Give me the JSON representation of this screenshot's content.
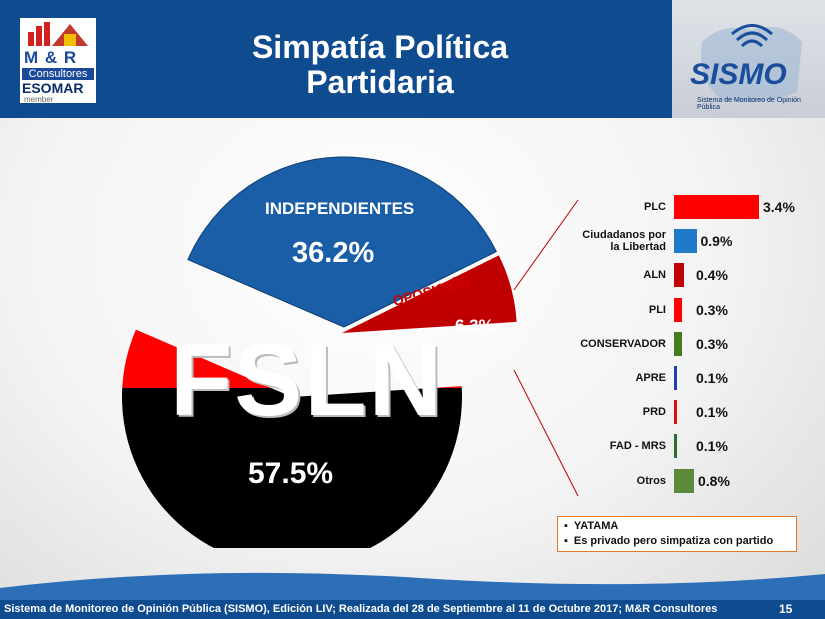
{
  "header": {
    "title_line1": "Simpatía  Política",
    "title_line2": "Partidaria",
    "logo_left": {
      "line1": "M & R",
      "line2": "Consultores",
      "line3": "ESOMAR",
      "line4": "member"
    },
    "logo_right": {
      "name": "SISMO",
      "subtitle": "Sistema de Monitoreo de Opinión Pública"
    }
  },
  "chart_data": [
    {
      "type": "pie",
      "slices": [
        {
          "label": "INDEPENDIENTES",
          "value": 36.2,
          "value_label": "36.2%",
          "color": "#1a5ea8"
        },
        {
          "label": "OPOSICIÓN",
          "value": 6.3,
          "value_label": "6.3%",
          "color": "#c00000"
        },
        {
          "label": "FSLN",
          "value": 57.5,
          "value_label": "57.5%",
          "color_top": "#ff0000",
          "color_bottom": "#000000"
        }
      ]
    },
    {
      "type": "bar",
      "orientation": "horizontal",
      "categories": [
        "PLC",
        "Ciudadanos por la Libertad",
        "ALN",
        "PLI",
        "CONSERVADOR",
        "APRE",
        "PRD",
        "FAD - MRS",
        "Otros"
      ],
      "category_lines": [
        [
          "PLC"
        ],
        [
          "Ciudadanos por",
          "la Libertad"
        ],
        [
          "ALN"
        ],
        [
          "PLI"
        ],
        [
          "CONSERVADOR"
        ],
        [
          "APRE"
        ],
        [
          "PRD"
        ],
        [
          "FAD - MRS"
        ],
        [
          "Otros"
        ]
      ],
      "values": [
        3.4,
        0.9,
        0.4,
        0.3,
        0.3,
        0.1,
        0.1,
        0.1,
        0.8
      ],
      "value_labels": [
        "3.4%",
        "0.9%",
        "0.4%",
        "0.3%",
        "0.3%",
        "0.1%",
        "0.1%",
        "0.1%",
        "0.8%"
      ],
      "colors": [
        "#ff0000",
        "#1f7ac9",
        "#c00000",
        "#ff0000",
        "#4a7a1e",
        "#1f3fae",
        "#e01010",
        "#2e6b2e",
        "#5a8a3a"
      ]
    }
  ],
  "legend_box": {
    "items": [
      "YATAMA",
      "Es privado pero simpatiza con partido"
    ]
  },
  "footer": {
    "text": "Sistema de Monitoreo de Opinión Pública (SISMO), Edición LIV; Realizada del 28 de Septiembre al 11 de Octubre 2017; M&R Consultores",
    "page": "15"
  }
}
